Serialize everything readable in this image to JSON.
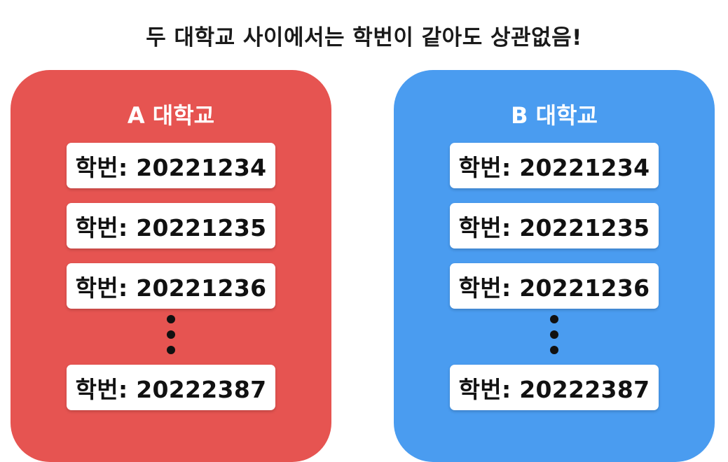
{
  "headline": "두 대학교 사이에서는 학번이 같아도 상관없음!",
  "colors": {
    "panel_a": "#e65451",
    "panel_b": "#4a9cf0",
    "card": "#ffffff",
    "text": "#111111"
  },
  "panels": [
    {
      "title": "A 대학교",
      "cards": [
        "학번: 20221234",
        "학번: 20221235",
        "학번: 20221236",
        "학번: 20222387"
      ]
    },
    {
      "title": "B 대학교",
      "cards": [
        "학번: 20221234",
        "학번: 20221235",
        "학번: 20221236",
        "학번: 20222387"
      ]
    }
  ]
}
